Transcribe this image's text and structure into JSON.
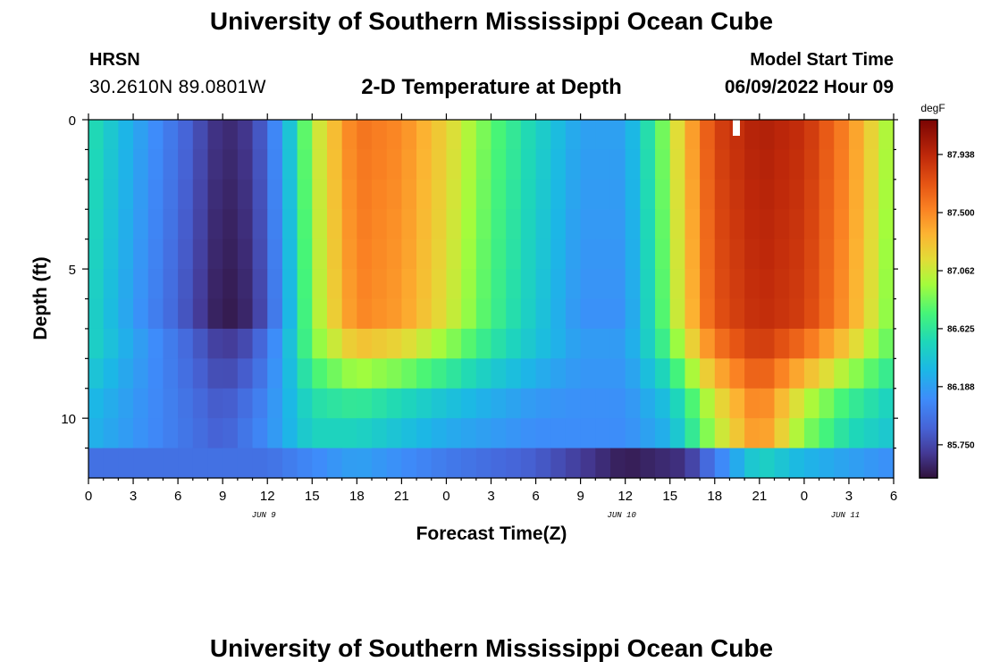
{
  "page": {
    "top_title": "University of Southern Mississippi Ocean Cube",
    "bottom_title": "University of Southern Mississippi Ocean Cube",
    "station": "HRSN",
    "coordinates": "30.2610N  89.0801W",
    "plot_title": "2-D Temperature at Depth",
    "model_start_label": "Model Start Time",
    "model_start_value": "06/09/2022 Hour 09"
  },
  "chart_data": {
    "type": "heatmap",
    "title": "2-D Temperature at Depth",
    "xlabel": "Forecast Time(Z)",
    "ylabel": "Depth (ft)",
    "x_range_hours": [
      0,
      54
    ],
    "y_range_ft": [
      0,
      12
    ],
    "x_tick_values": [
      0,
      3,
      6,
      9,
      12,
      15,
      18,
      21,
      24,
      27,
      30,
      33,
      36,
      39,
      42,
      45,
      48,
      51,
      54
    ],
    "x_tick_labels": [
      "0",
      "3",
      "6",
      "9",
      "12",
      "15",
      "18",
      "21",
      "0",
      "3",
      "6",
      "9",
      "12",
      "15",
      "18",
      "21",
      "0",
      "3",
      "6"
    ],
    "y_tick_values": [
      0,
      5,
      10
    ],
    "y_tick_labels": [
      "0",
      "5",
      "10"
    ],
    "date_labels": [
      {
        "text": "JUN 9",
        "hour": 12
      },
      {
        "text": "JUN 10",
        "hour": 36
      },
      {
        "text": "JUN 11",
        "hour": 51
      }
    ],
    "colorbar": {
      "unit": "degF",
      "min": 85.5,
      "max": 88.2,
      "tick_values": [
        85.75,
        86.188,
        86.625,
        87.062,
        87.5,
        87.938
      ],
      "tick_labels": [
        "85.750",
        "86.188",
        "86.625",
        "87.062",
        "87.500",
        "87.938"
      ]
    },
    "layer_depths_ft": [
      0.5,
      1.5,
      2.5,
      3.5,
      4.5,
      5.5,
      6.5,
      7.5,
      8.5,
      9.5,
      10.5,
      11.5
    ],
    "temperature_profile_degF": {
      "surface_layers": {
        "hours": [
          0,
          3,
          6,
          9,
          11,
          13,
          15,
          18,
          21,
          24,
          27,
          30,
          33,
          36,
          38,
          40,
          42,
          45,
          48,
          51,
          54
        ],
        "temp": [
          86.6,
          86.25,
          85.95,
          85.6,
          85.7,
          86.2,
          87.0,
          87.6,
          87.5,
          87.2,
          86.8,
          86.5,
          86.2,
          86.2,
          86.7,
          87.3,
          87.8,
          88.0,
          87.9,
          87.5,
          86.9
        ]
      },
      "near_bottom_layers": {
        "hours": [
          0,
          6,
          9,
          12,
          15,
          18,
          24,
          30,
          36,
          39,
          42,
          45,
          48,
          51,
          54
        ],
        "temp": [
          86.3,
          86.0,
          85.85,
          86.1,
          86.5,
          86.5,
          86.25,
          86.1,
          86.1,
          86.3,
          87.0,
          87.5,
          86.9,
          86.55,
          86.4
        ]
      },
      "bottom_layer": {
        "hours": [
          0,
          6,
          12,
          18,
          24,
          30,
          36,
          40,
          42,
          45,
          48,
          54
        ],
        "temp": [
          85.95,
          85.95,
          85.95,
          86.2,
          86.0,
          85.85,
          85.55,
          85.65,
          86.0,
          86.5,
          86.3,
          86.1
        ]
      }
    }
  }
}
